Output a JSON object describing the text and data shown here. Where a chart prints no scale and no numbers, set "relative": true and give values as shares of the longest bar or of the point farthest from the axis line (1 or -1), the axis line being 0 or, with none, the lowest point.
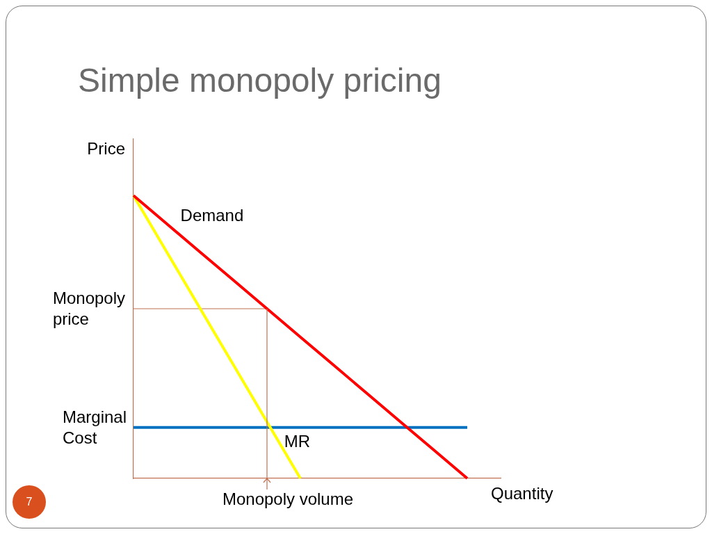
{
  "chart_data": {
    "type": "line",
    "title": "Simple monopoly pricing",
    "xlabel": "Quantity",
    "ylabel": "Price",
    "relative": true,
    "grid": false,
    "legend": false,
    "marker": "none",
    "categories": [
      null,
      null,
      null,
      null,
      null,
      null,
      null,
      null,
      null,
      null,
      null,
      null
    ],
    "series": [
      {
        "name": "Demand",
        "color": "#ff0000",
        "values": [
          1,
          0.9,
          0.8,
          0.7,
          0.6,
          0.5,
          0.4,
          0.3,
          0.2,
          0.1,
          0,
          null
        ]
      },
      {
        "name": "MR",
        "color": "#ffff00",
        "values": [
          1,
          0.8,
          0.6,
          0.4,
          0.2,
          0,
          null,
          null,
          null,
          null,
          null,
          null
        ]
      },
      {
        "name": "Marginal Cost",
        "color": "#0070c0",
        "values": [
          0.18,
          0.18,
          0.18,
          0.18,
          0.18,
          0.18,
          0.18,
          0.18,
          0.18,
          0.18,
          0.18,
          null
        ]
      },
      {
        "color": "#c0714f",
        "values": [
          0.6,
          0.6,
          0.6,
          0.6,
          0.6,
          null,
          null,
          null,
          null,
          null,
          null,
          null
        ]
      }
    ],
    "annotations": [
      "Monopoly price",
      "Monopoly volume",
      "7"
    ]
  }
}
